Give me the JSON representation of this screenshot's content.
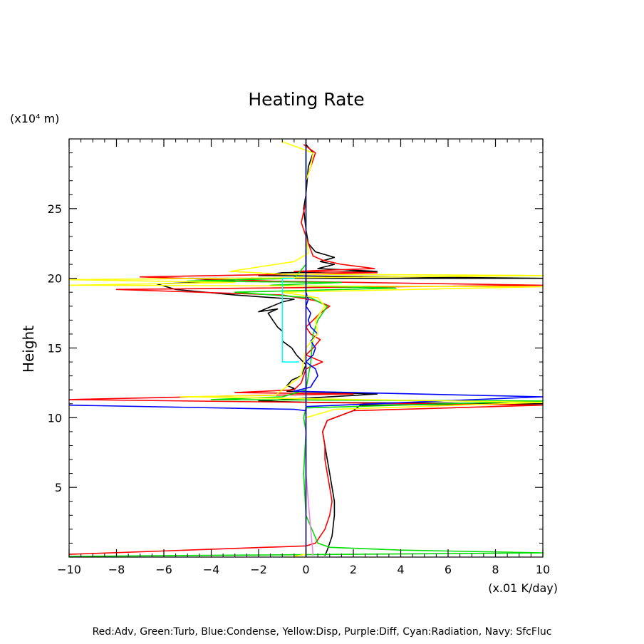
{
  "chart_data": {
    "type": "line",
    "title": "Heating Rate",
    "xlabel": "(x.01 K/day)",
    "ylabel": "Height",
    "yunit": "(x10⁴ m)",
    "xlim": [
      -10,
      10
    ],
    "ylim": [
      0,
      30
    ],
    "xticks": [
      -10,
      -8,
      -6,
      -4,
      -2,
      0,
      2,
      4,
      6,
      8,
      10
    ],
    "yticks": [
      5,
      10,
      15,
      20,
      25
    ],
    "legend": "Red:Adv, Green:Turb, Blue:Condense, Yellow:Disp, Purple:Diff, Cyan:Radiation, Navy: SfcFluc",
    "series": [
      {
        "name": "Black",
        "color": "#000000",
        "points": [
          [
            0.8,
            0.1
          ],
          [
            0.9,
            0.5
          ],
          [
            1.1,
            1.5
          ],
          [
            1.2,
            3
          ],
          [
            1.2,
            4
          ],
          [
            1.1,
            5
          ],
          [
            1,
            6
          ],
          [
            0.9,
            7
          ],
          [
            0.8,
            8
          ],
          [
            0.7,
            9
          ],
          [
            0.9,
            9.8
          ],
          [
            2,
            10.5
          ],
          [
            2.3,
            10.9
          ],
          [
            10,
            11
          ],
          [
            0.2,
            11.1
          ],
          [
            -2,
            11.2
          ],
          [
            3,
            11.7
          ],
          [
            -0.8,
            11.9
          ],
          [
            -0.5,
            12.1
          ],
          [
            -0.8,
            12.3
          ],
          [
            -0.6,
            12.7
          ],
          [
            -0.2,
            13
          ],
          [
            0,
            13.8
          ],
          [
            -0.4,
            14.5
          ],
          [
            -0.6,
            15
          ],
          [
            -1,
            15.5
          ],
          [
            -1,
            16.2
          ],
          [
            -1.2,
            16.5
          ],
          [
            -1.4,
            17
          ],
          [
            -1.6,
            17.5
          ],
          [
            -1.2,
            17.8
          ],
          [
            -2,
            17.6
          ],
          [
            -1,
            18.3
          ],
          [
            -0.5,
            18.5
          ],
          [
            -3,
            18.8
          ],
          [
            -5.5,
            19.2
          ],
          [
            -6.3,
            19.6
          ],
          [
            -3,
            19.8
          ],
          [
            -5,
            20
          ],
          [
            10,
            20
          ],
          [
            -2,
            20.2
          ],
          [
            -1,
            20.4
          ],
          [
            3,
            20.5
          ],
          [
            0.5,
            20.7
          ],
          [
            1.2,
            21
          ],
          [
            0.6,
            21.2
          ],
          [
            1.2,
            21.5
          ],
          [
            0.8,
            21.7
          ],
          [
            0.4,
            21.9
          ],
          [
            0.1,
            22.5
          ],
          [
            0,
            23.5
          ],
          [
            -0.1,
            25
          ],
          [
            0,
            26
          ],
          [
            0.1,
            28
          ],
          [
            0.3,
            29
          ],
          [
            0,
            29.6
          ]
        ]
      },
      {
        "name": "Red:Adv",
        "color": "#ff0000",
        "points": [
          [
            -10,
            0.2
          ],
          [
            -5,
            0.5
          ],
          [
            0,
            0.8
          ],
          [
            0.4,
            1
          ],
          [
            0.8,
            2
          ],
          [
            1,
            3
          ],
          [
            1.1,
            4
          ],
          [
            1,
            5
          ],
          [
            0.9,
            6
          ],
          [
            0.8,
            7
          ],
          [
            0.8,
            8
          ],
          [
            0.7,
            9
          ],
          [
            0.9,
            9.8
          ],
          [
            2,
            10.5
          ],
          [
            10,
            10.9
          ],
          [
            -10,
            11.3
          ],
          [
            -2,
            11.6
          ],
          [
            2,
            11.7
          ],
          [
            -3,
            11.8
          ],
          [
            -0.5,
            12
          ],
          [
            -0.2,
            12.5
          ],
          [
            0,
            13.5
          ],
          [
            0.7,
            14
          ],
          [
            0,
            14.5
          ],
          [
            0.3,
            15
          ],
          [
            0.6,
            15.6
          ],
          [
            0.2,
            16
          ],
          [
            0,
            16.5
          ],
          [
            0.3,
            17
          ],
          [
            0.6,
            17.5
          ],
          [
            1,
            18
          ],
          [
            0.4,
            18.4
          ],
          [
            -1,
            18.8
          ],
          [
            -8,
            19.2
          ],
          [
            10,
            19.5
          ],
          [
            -1.5,
            19.8
          ],
          [
            -7,
            20.1
          ],
          [
            3,
            20.4
          ],
          [
            -0.5,
            20.5
          ],
          [
            2.9,
            20.7
          ],
          [
            1.5,
            21
          ],
          [
            0.7,
            21.3
          ],
          [
            0.3,
            21.6
          ],
          [
            0.1,
            22.5
          ],
          [
            -0.2,
            24
          ],
          [
            0,
            25.5
          ],
          [
            0,
            27
          ],
          [
            0.4,
            29
          ],
          [
            -0.1,
            29.6
          ]
        ]
      },
      {
        "name": "Green:Turb",
        "color": "#00dd00",
        "points": [
          [
            -10,
            0.05
          ],
          [
            10,
            0.3
          ],
          [
            4,
            0.5
          ],
          [
            1,
            0.7
          ],
          [
            0.5,
            1
          ],
          [
            0,
            3
          ],
          [
            -0.1,
            6
          ],
          [
            0,
            9
          ],
          [
            -0.1,
            10
          ],
          [
            0,
            10.7
          ],
          [
            10,
            11.2
          ],
          [
            -4,
            11.3
          ],
          [
            -1,
            11.5
          ],
          [
            0,
            12
          ],
          [
            0.2,
            14
          ],
          [
            0.3,
            16
          ],
          [
            0.5,
            17
          ],
          [
            0.9,
            18
          ],
          [
            0.2,
            18.6
          ],
          [
            -3,
            19
          ],
          [
            3.8,
            19.3
          ],
          [
            -1.5,
            19.5
          ],
          [
            1.5,
            19.7
          ],
          [
            -5,
            19.8
          ],
          [
            -0.5,
            20
          ],
          [
            0,
            21
          ],
          [
            0,
            23
          ],
          [
            0,
            26
          ],
          [
            0,
            29.5
          ]
        ]
      },
      {
        "name": "Blue:Condense",
        "color": "#0000ff",
        "points": [
          [
            -10,
            10.9
          ],
          [
            -0.5,
            10.6
          ],
          [
            0,
            10.5
          ],
          [
            0,
            10.8
          ],
          [
            10,
            11.5
          ],
          [
            -0.5,
            11.9
          ],
          [
            0.2,
            12.2
          ],
          [
            0.3,
            12.5
          ],
          [
            0.5,
            13
          ],
          [
            0.4,
            13.5
          ],
          [
            0,
            14
          ],
          [
            0.3,
            14.5
          ],
          [
            0.4,
            15
          ],
          [
            0.2,
            15.5
          ],
          [
            0.5,
            16
          ],
          [
            0.2,
            16.5
          ],
          [
            0.1,
            17
          ],
          [
            0.2,
            17.5
          ],
          [
            0,
            18
          ],
          [
            0.1,
            18.5
          ],
          [
            0,
            19
          ],
          [
            0,
            22
          ]
        ]
      },
      {
        "name": "Yellow:Disp",
        "color": "#ffff00",
        "points": [
          [
            -0.5,
            0.05
          ],
          [
            0,
            0.2
          ],
          [
            0,
            5
          ],
          [
            0,
            9
          ],
          [
            0,
            10
          ],
          [
            1.2,
            10.6
          ],
          [
            10,
            11.1
          ],
          [
            -5.3,
            11.5
          ],
          [
            -1.3,
            11.6
          ],
          [
            -1,
            12
          ],
          [
            -0.2,
            13
          ],
          [
            0,
            15
          ],
          [
            0.5,
            16
          ],
          [
            0.4,
            17
          ],
          [
            0.8,
            18
          ],
          [
            0.5,
            18.6
          ],
          [
            -1,
            19
          ],
          [
            10,
            19.4
          ],
          [
            -10,
            19.5
          ],
          [
            -3,
            19.7
          ],
          [
            -10,
            19.9
          ],
          [
            10,
            20.2
          ],
          [
            -1,
            20.3
          ],
          [
            -3.2,
            20.5
          ],
          [
            -0.5,
            21.2
          ],
          [
            0.1,
            21.8
          ],
          [
            0,
            23
          ],
          [
            0,
            25
          ],
          [
            0,
            27
          ],
          [
            0.2,
            28
          ],
          [
            0.3,
            29
          ],
          [
            -1,
            29.8
          ]
        ]
      },
      {
        "name": "Purple:Diff",
        "color": "#ee82ee",
        "points": [
          [
            0.3,
            0.1
          ],
          [
            0.2,
            2
          ],
          [
            0.1,
            4
          ],
          [
            0,
            6
          ],
          [
            0,
            10
          ],
          [
            0,
            18
          ]
        ]
      },
      {
        "name": "Cyan:Radiation",
        "color": "#00ffff",
        "points": [
          [
            -0.3,
            14
          ],
          [
            -1,
            14
          ],
          [
            -1,
            20
          ],
          [
            -0.5,
            20
          ]
        ]
      },
      {
        "name": "Navy: SfcFluc",
        "color": "#000080",
        "points": [
          [
            0,
            0
          ],
          [
            0,
            30
          ]
        ]
      }
    ]
  }
}
